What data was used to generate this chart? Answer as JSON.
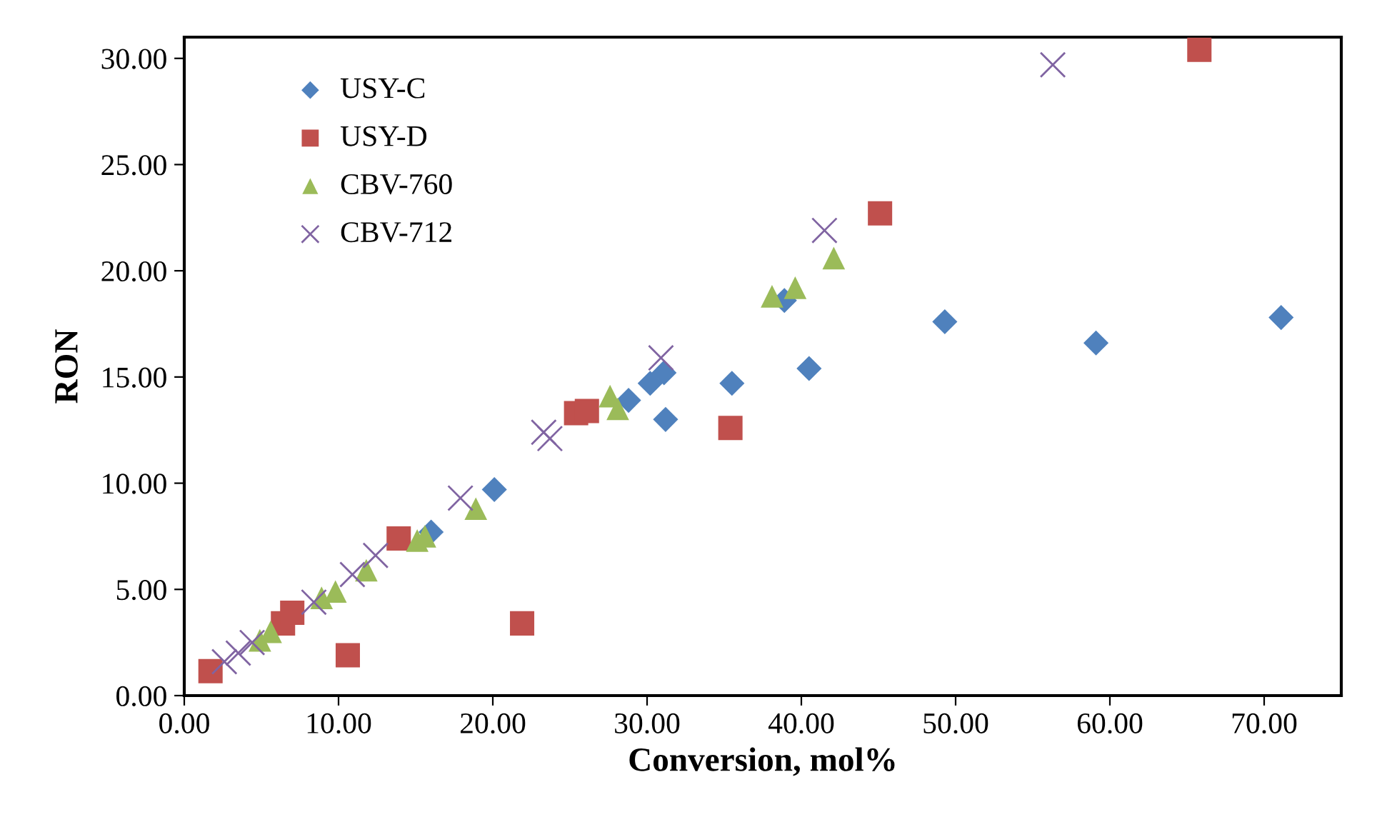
{
  "chart_data": {
    "type": "scatter",
    "xlabel": "Conversion, mol%",
    "ylabel": "RON",
    "xlim": [
      0,
      75
    ],
    "ylim": [
      0,
      31
    ],
    "xticks": [
      {
        "value": 0,
        "label": "0.00"
      },
      {
        "value": 10,
        "label": "10.00"
      },
      {
        "value": 20,
        "label": "20.00"
      },
      {
        "value": 30,
        "label": "30.00"
      },
      {
        "value": 40,
        "label": "40.00"
      },
      {
        "value": 50,
        "label": "50.00"
      },
      {
        "value": 60,
        "label": "60.00"
      },
      {
        "value": 70,
        "label": "70.00"
      }
    ],
    "yticks": [
      {
        "value": 0,
        "label": "0.00"
      },
      {
        "value": 5,
        "label": "5.00"
      },
      {
        "value": 10,
        "label": "10.00"
      },
      {
        "value": 15,
        "label": "15.00"
      },
      {
        "value": 20,
        "label": "20.00"
      },
      {
        "value": 25,
        "label": "25.00"
      },
      {
        "value": 30,
        "label": "30.00"
      }
    ],
    "grid": false,
    "legend": "top left",
    "series": [
      {
        "name": "USY-C",
        "color": "#4f81bd",
        "marker": "diamond",
        "x": [
          16.0,
          20.1,
          28.8,
          30.2,
          31.1,
          31.2,
          35.5,
          38.9,
          40.5,
          49.3,
          59.1,
          71.1
        ],
        "values": [
          7.7,
          9.7,
          13.9,
          14.7,
          15.2,
          13.0,
          14.7,
          18.6,
          15.4,
          17.6,
          16.6,
          17.8
        ]
      },
      {
        "name": "USY-D",
        "color": "#c0504d",
        "marker": "square",
        "x": [
          1.7,
          10.6,
          21.9,
          6.4,
          7.0,
          13.9,
          25.4,
          26.1,
          35.4,
          45.1,
          65.8
        ],
        "values": [
          1.15,
          1.9,
          3.4,
          3.4,
          3.9,
          7.4,
          13.3,
          13.4,
          12.6,
          22.7,
          30.4
        ]
      },
      {
        "name": "CBV-760",
        "color": "#9bbb59",
        "marker": "triangle",
        "x": [
          4.9,
          5.6,
          8.9,
          9.8,
          11.8,
          15.1,
          15.6,
          18.9,
          27.6,
          28.1,
          38.1,
          39.6,
          42.1
        ],
        "values": [
          2.6,
          3.0,
          4.6,
          4.9,
          5.9,
          7.3,
          7.5,
          8.8,
          14.1,
          13.5,
          18.8,
          19.2,
          20.6
        ]
      },
      {
        "name": "CBV-712",
        "color": "#8064a2",
        "marker": "cross",
        "x": [
          2.6,
          3.5,
          4.4,
          8.4,
          10.9,
          12.4,
          17.9,
          23.3,
          23.7,
          30.9,
          41.5,
          56.3
        ],
        "values": [
          1.6,
          2.0,
          2.5,
          4.4,
          5.7,
          6.6,
          9.3,
          12.4,
          12.1,
          15.9,
          21.9,
          29.7
        ]
      }
    ]
  }
}
